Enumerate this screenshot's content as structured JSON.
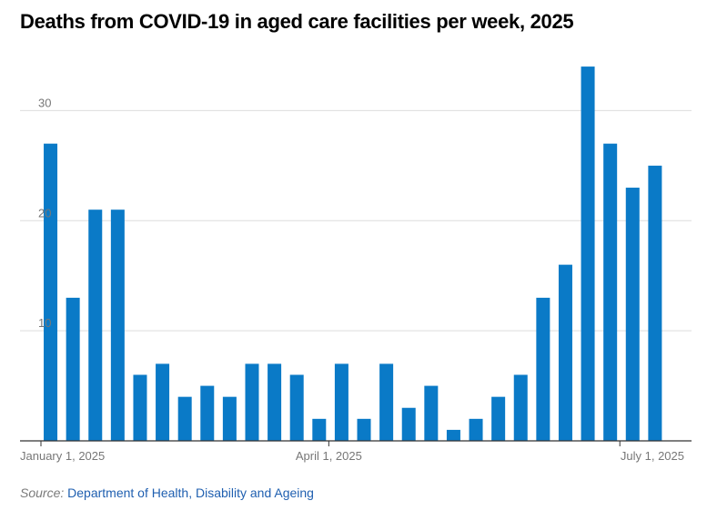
{
  "colors": {
    "bar": "#0a7ac7",
    "grid": "#dddddd",
    "axis": "#333333",
    "tick_text": "#777777",
    "link": "#1f5fb0"
  },
  "source": {
    "label": "Source:",
    "link_text": "Department of Health, Disability and Ageing"
  },
  "chart_data": {
    "type": "bar",
    "title": "Deaths from COVID-19 in aged care facilities per week, 2025",
    "xlabel": "",
    "ylabel": "",
    "ylim": [
      0,
      35
    ],
    "yticks": [
      10,
      20,
      30
    ],
    "grid": true,
    "x_tick_labels": [
      {
        "label": "January 1, 2025",
        "date": "2025-01-01"
      },
      {
        "label": "April 1, 2025",
        "date": "2025-04-01"
      },
      {
        "label": "July 1, 2025",
        "date": "2025-07-01"
      }
    ],
    "x": [
      "2025-01-04",
      "2025-01-11",
      "2025-01-18",
      "2025-01-25",
      "2025-02-01",
      "2025-02-08",
      "2025-02-15",
      "2025-02-22",
      "2025-03-01",
      "2025-03-08",
      "2025-03-15",
      "2025-03-22",
      "2025-03-29",
      "2025-04-05",
      "2025-04-12",
      "2025-04-19",
      "2025-04-26",
      "2025-05-03",
      "2025-05-10",
      "2025-05-17",
      "2025-05-24",
      "2025-05-31",
      "2025-06-07",
      "2025-06-14",
      "2025-06-21",
      "2025-06-28",
      "2025-07-05",
      "2025-07-12",
      "2025-07-19"
    ],
    "values": [
      27,
      13,
      21,
      21,
      6,
      7,
      4,
      5,
      4,
      7,
      7,
      6,
      2,
      7,
      2,
      7,
      3,
      5,
      1,
      2,
      4,
      6,
      13,
      16,
      34,
      27,
      23,
      25,
      0
    ]
  }
}
